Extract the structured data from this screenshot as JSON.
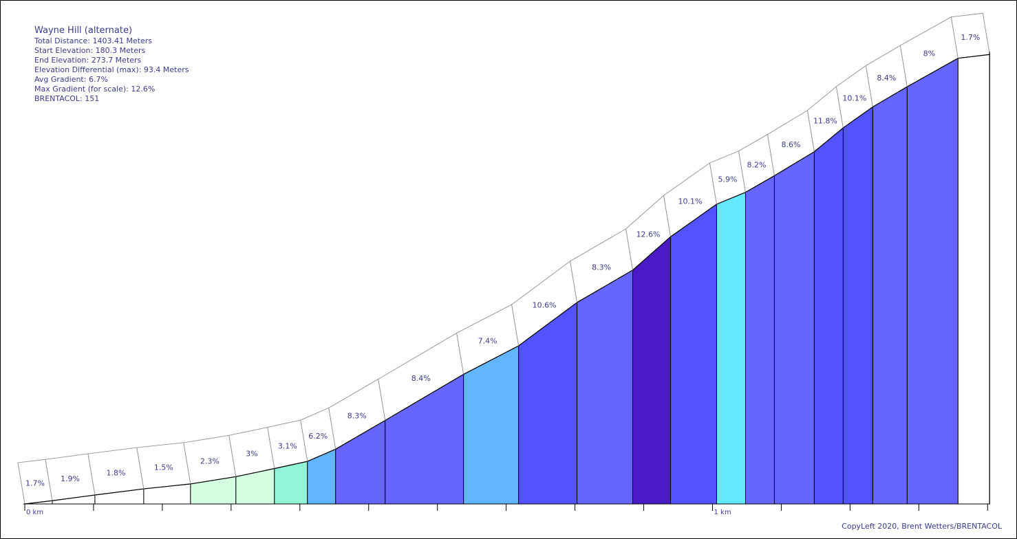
{
  "info": {
    "title": "Wayne Hill (alternate)",
    "total_distance": "Total Distance: 1403.41 Meters",
    "start_elevation": "Start Elevation: 180.3 Meters",
    "end_elevation": "End Elevation: 273.7 Meters",
    "elevation_differential": "Elevation Differential (max): 93.4 Meters",
    "avg_gradient": "Avg Gradient: 6.7%",
    "max_gradient": "Max Gradient (for scale): 12.6%",
    "brentacol": "BRENTACOL: 151"
  },
  "copyright": "CopyLeft 2020, Brent Wetters/BRENTACOL",
  "chart_data": {
    "type": "area",
    "x_unit": "km",
    "y_unit": "Meters",
    "start_elevation": 180.3,
    "end_elevation": 273.7,
    "x_ticks": [
      {
        "x": 0,
        "label": "0 km"
      },
      {
        "x": 0.1,
        "label": ""
      },
      {
        "x": 0.2,
        "label": ""
      },
      {
        "x": 0.3,
        "label": ""
      },
      {
        "x": 0.4,
        "label": ""
      },
      {
        "x": 0.5,
        "label": ""
      },
      {
        "x": 0.6,
        "label": ""
      },
      {
        "x": 0.7,
        "label": ""
      },
      {
        "x": 0.8,
        "label": ""
      },
      {
        "x": 0.9,
        "label": ""
      },
      {
        "x": 1.0,
        "label": "1 km"
      },
      {
        "x": 1.1,
        "label": ""
      },
      {
        "x": 1.2,
        "label": ""
      },
      {
        "x": 1.3,
        "label": ""
      },
      {
        "x": 1.4,
        "label": ""
      }
    ],
    "segments": [
      {
        "start": 0.0,
        "end": 0.04,
        "gradient": 1.7,
        "label": "1.7%",
        "color": "#ffffff"
      },
      {
        "start": 0.04,
        "end": 0.102,
        "gradient": 1.9,
        "label": "1.9%",
        "color": "#ffffff"
      },
      {
        "start": 0.102,
        "end": 0.173,
        "gradient": 1.8,
        "label": "1.8%",
        "color": "#ffffff"
      },
      {
        "start": 0.173,
        "end": 0.241,
        "gradient": 1.5,
        "label": "1.5%",
        "color": "#ffffff"
      },
      {
        "start": 0.241,
        "end": 0.307,
        "gradient": 2.3,
        "label": "2.3%",
        "color": "#d4fde2"
      },
      {
        "start": 0.307,
        "end": 0.363,
        "gradient": 3,
        "label": "3%",
        "color": "#d4fde2"
      },
      {
        "start": 0.363,
        "end": 0.411,
        "gradient": 3.1,
        "label": "3.1%",
        "color": "#93f5d8"
      },
      {
        "start": 0.411,
        "end": 0.452,
        "gradient": 6.2,
        "label": "6.2%",
        "color": "#62b5ff"
      },
      {
        "start": 0.452,
        "end": 0.524,
        "gradient": 8.3,
        "label": "8.3%",
        "color": "#6666ff"
      },
      {
        "start": 0.524,
        "end": 0.638,
        "gradient": 8.4,
        "label": "8.4%",
        "color": "#6666ff"
      },
      {
        "start": 0.638,
        "end": 0.718,
        "gradient": 7.4,
        "label": "7.4%",
        "color": "#62b5ff"
      },
      {
        "start": 0.718,
        "end": 0.803,
        "gradient": 10.6,
        "label": "10.6%",
        "color": "#5252ff"
      },
      {
        "start": 0.803,
        "end": 0.884,
        "gradient": 8.3,
        "label": "8.3%",
        "color": "#6666ff"
      },
      {
        "start": 0.884,
        "end": 0.939,
        "gradient": 12.6,
        "label": "12.6%",
        "color": "#4a1ac7"
      },
      {
        "start": 0.939,
        "end": 1.006,
        "gradient": 10.1,
        "label": "10.1%",
        "color": "#5252ff"
      },
      {
        "start": 1.006,
        "end": 1.048,
        "gradient": 5.9,
        "label": "5.9%",
        "color": "#62e8ff"
      },
      {
        "start": 1.048,
        "end": 1.09,
        "gradient": 8.2,
        "label": "8.2%",
        "color": "#6666ff"
      },
      {
        "start": 1.09,
        "end": 1.148,
        "gradient": 8.6,
        "label": "8.6%",
        "color": "#6666ff"
      },
      {
        "start": 1.148,
        "end": 1.19,
        "gradient": 11.8,
        "label": "11.8%",
        "color": "#5252ff"
      },
      {
        "start": 1.19,
        "end": 1.233,
        "gradient": 10.1,
        "label": "10.1%",
        "color": "#5252ff"
      },
      {
        "start": 1.233,
        "end": 1.283,
        "gradient": 8.4,
        "label": "8.4%",
        "color": "#6666ff"
      },
      {
        "start": 1.283,
        "end": 1.357,
        "gradient": 8,
        "label": "8%",
        "color": "#6666ff"
      },
      {
        "start": 1.357,
        "end": 1.403,
        "gradient": 1.7,
        "label": "1.7%",
        "color": "#ffffff"
      }
    ]
  }
}
